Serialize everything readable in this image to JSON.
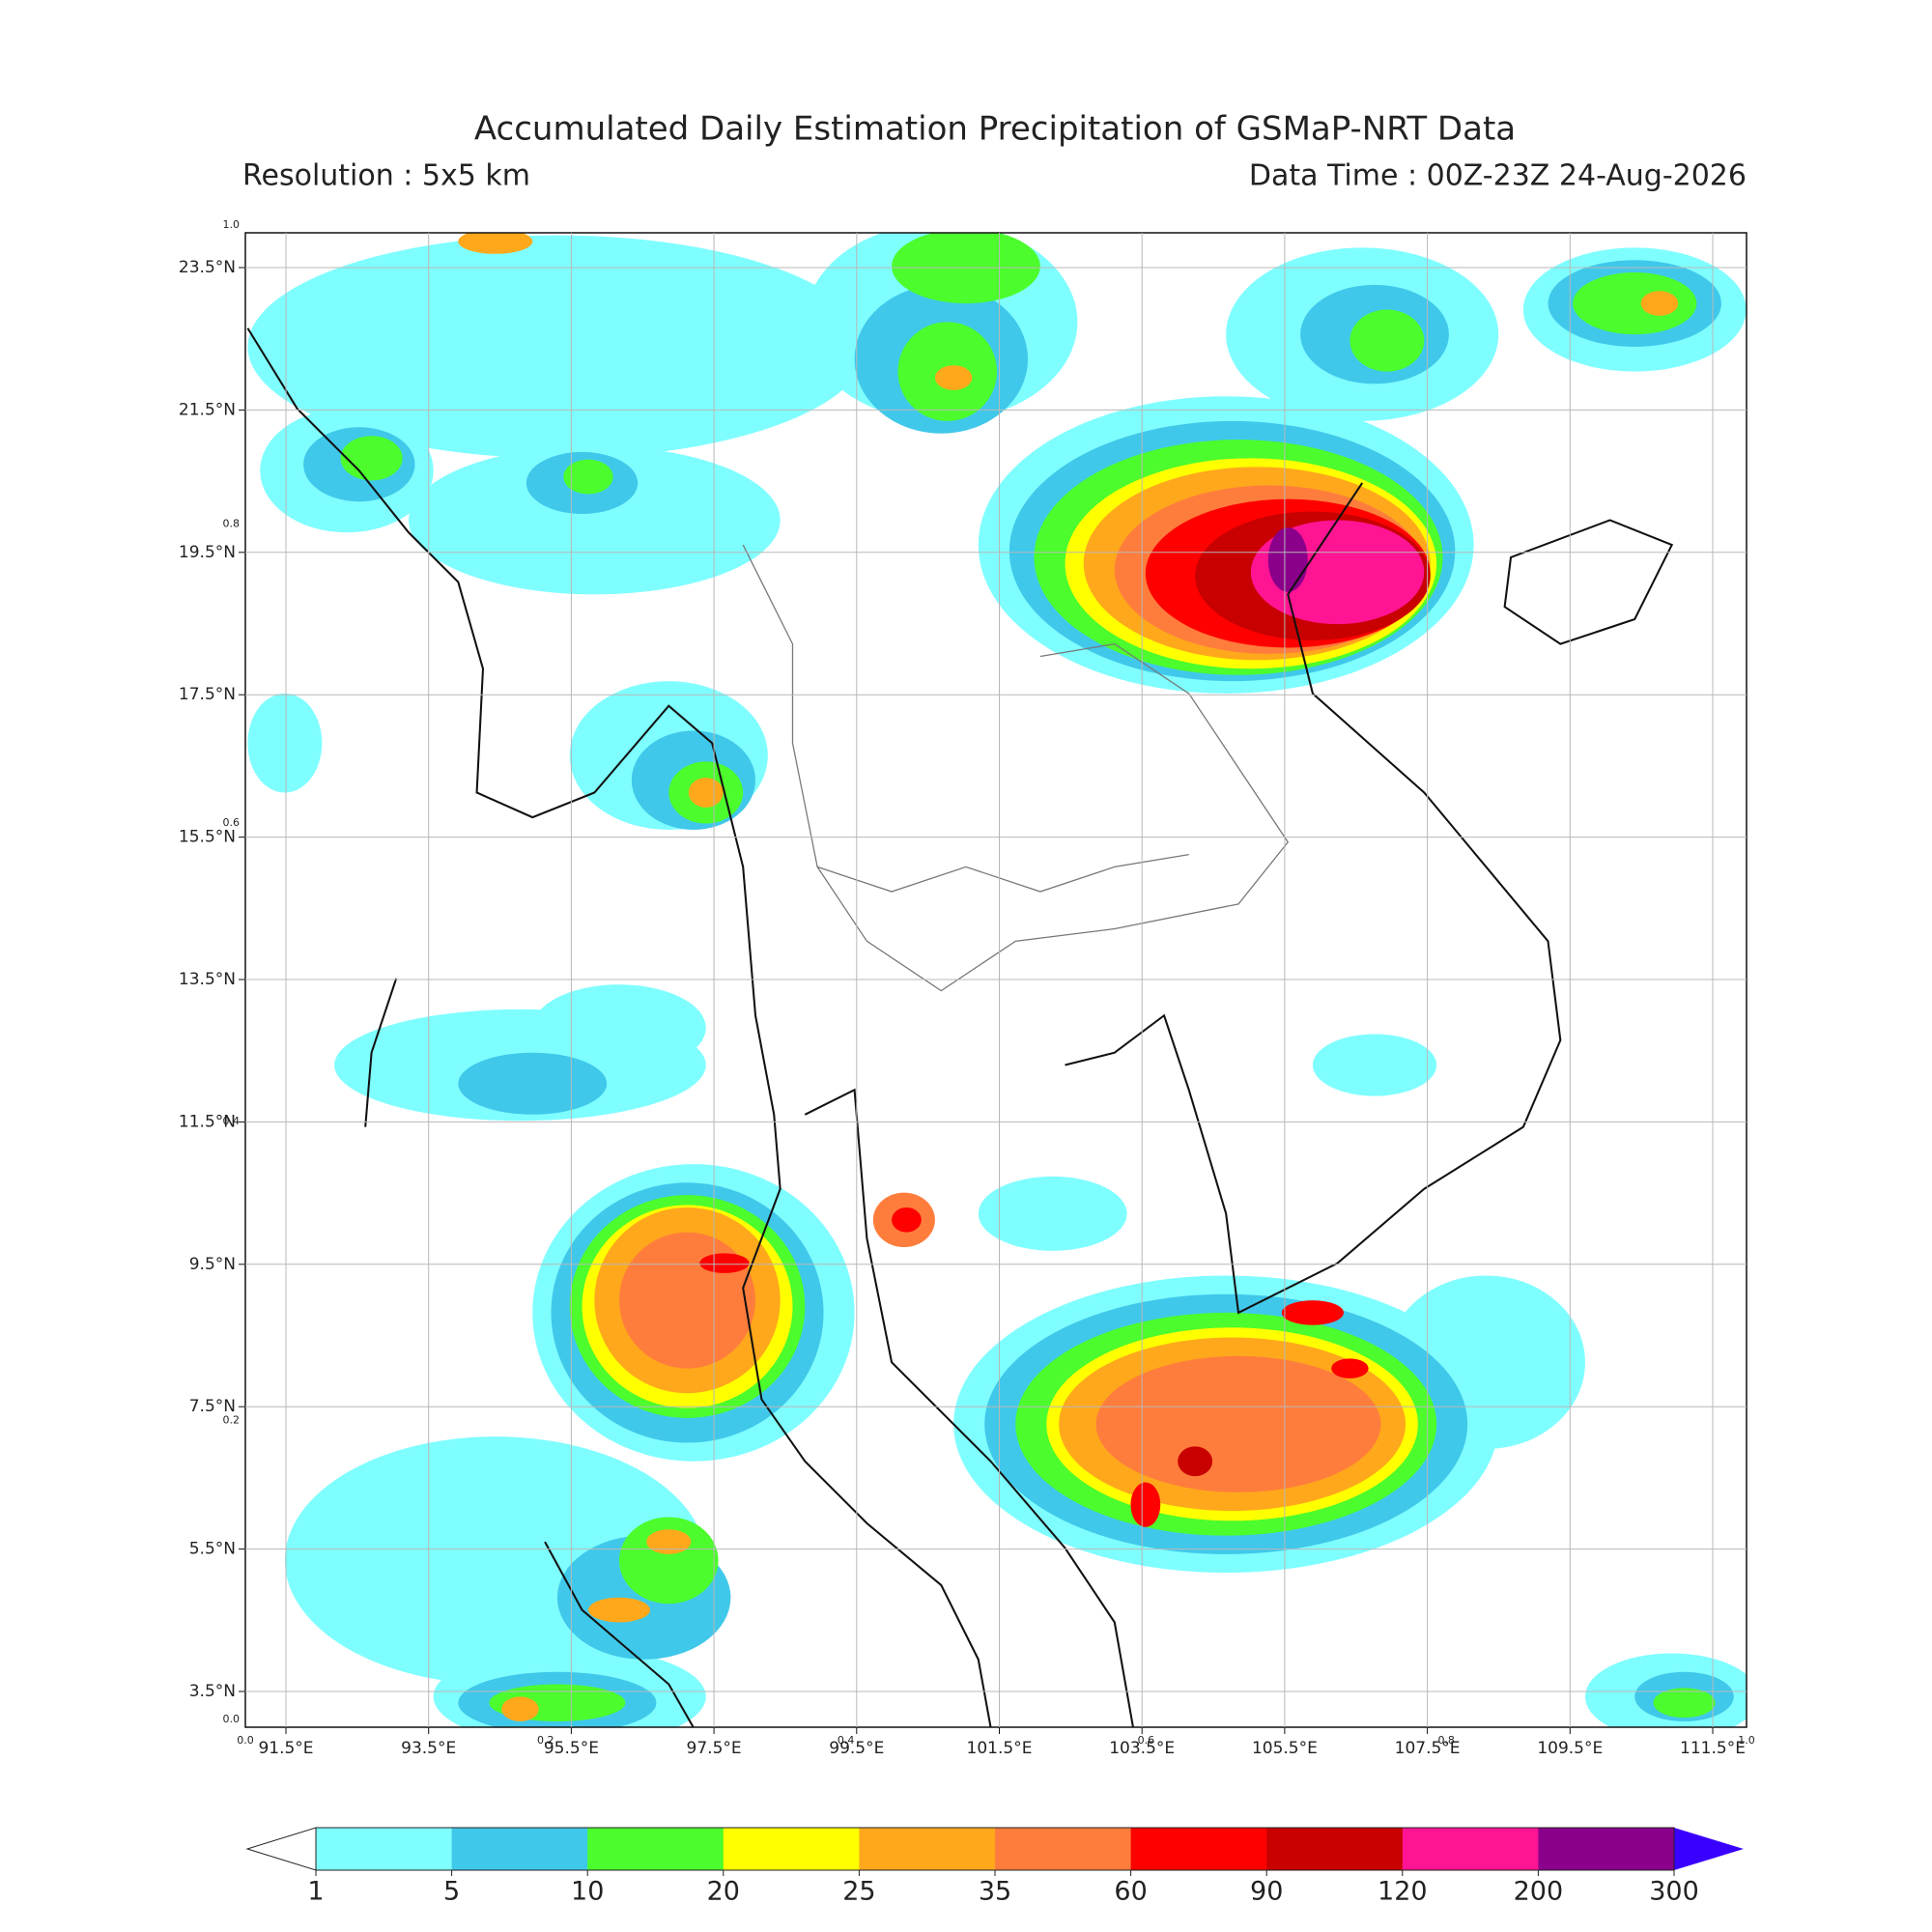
{
  "header": {
    "title": "Accumulated Daily Estimation Precipitation of GSMaP-NRT Data",
    "resolution": "Resolution : 5x5 km",
    "data_time": "Data Time : 00Z-23Z 24-Aug-2026"
  },
  "map": {
    "lat_labels": [
      "23.5°N",
      "21.5°N",
      "19.5°N",
      "17.5°N",
      "15.5°N",
      "13.5°N",
      "11.5°N",
      "9.5°N",
      "7.5°N",
      "5.5°N",
      "3.5°N"
    ],
    "lon_labels": [
      "91.5°E",
      "93.5°E",
      "95.5°E",
      "97.5°E",
      "99.5°E",
      "101.5°E",
      "103.5°E",
      "105.5°E",
      "107.5°E",
      "109.5°E",
      "111.5°E"
    ],
    "frame_ticks": [
      "0.0",
      "0.2",
      "0.4",
      "0.6",
      "0.8",
      "1.0"
    ]
  },
  "colorbar": {
    "levels": [
      1,
      5,
      10,
      20,
      25,
      35,
      60,
      90,
      120,
      200,
      300
    ],
    "colors": [
      "#7ffeff",
      "#40c8ea",
      "#4cfc2c",
      "#ffff00",
      "#ffa81c",
      "#ff7d3c",
      "#ff0000",
      "#c80000",
      "#ff1493",
      "#8b008b"
    ],
    "over_color": "#3a00ff"
  }
}
